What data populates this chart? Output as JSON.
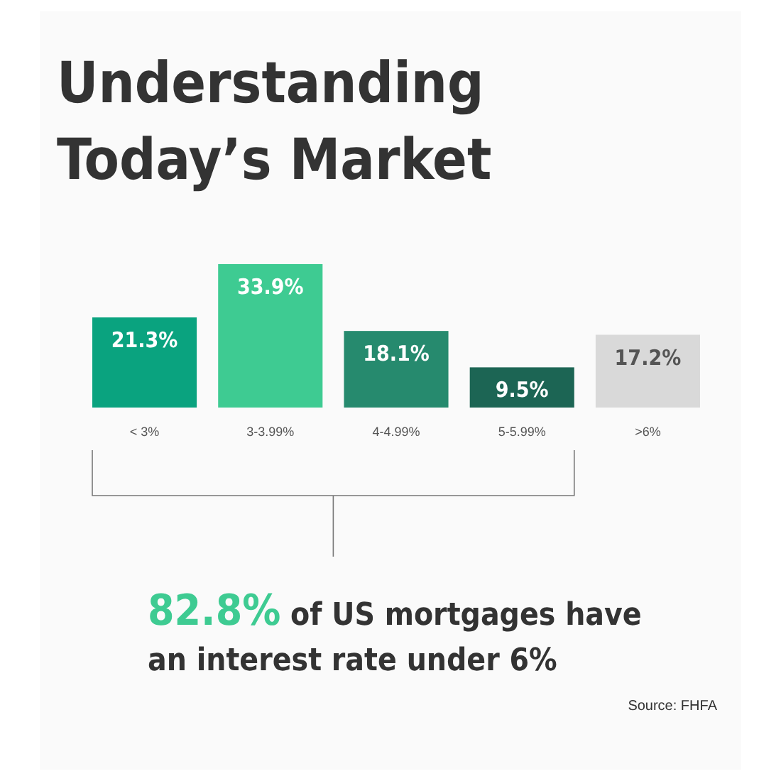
{
  "chart_data": {
    "type": "bar",
    "title": "Understanding Today’s Market",
    "categories": [
      "< 3%",
      "3-3.99%",
      "4-4.99%",
      "5-5.99%",
      ">6%"
    ],
    "values": [
      21.3,
      33.9,
      18.1,
      9.5,
      17.2
    ],
    "value_labels": [
      "21.3%",
      "33.9%",
      "18.1%",
      "9.5%",
      "17.2%"
    ],
    "colors": [
      "#0aa37f",
      "#3ecb92",
      "#268a6e",
      "#1c6554",
      "#d9d9d9"
    ],
    "annotations": [
      "82.8% of US mortgages have an interest rate under 6%",
      "Source: FHFA"
    ]
  }
}
